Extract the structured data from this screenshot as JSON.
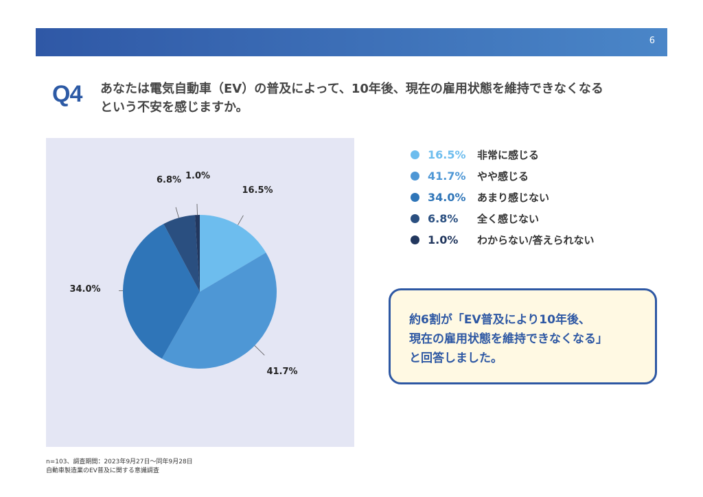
{
  "header": {
    "page_number": "6"
  },
  "question": {
    "label": "Q4",
    "text_line1": "あなたは電気自動車（EV）の普及によって、10年後、現在の雇用状態を維持できなくなる",
    "text_line2": "という不安を感じますか。"
  },
  "chart_data": {
    "type": "pie",
    "title": "",
    "start_angle": "12 o'clock",
    "direction": "clockwise",
    "slices": [
      {
        "label": "非常に感じる",
        "value": 16.5,
        "display": "16.5%",
        "color": "#6dbdee"
      },
      {
        "label": "やや感じる",
        "value": 41.7,
        "display": "41.7%",
        "color": "#4e97d5"
      },
      {
        "label": "あまり感じない",
        "value": 34.0,
        "display": "34.0%",
        "color": "#2f75b8"
      },
      {
        "label": "全く感じない",
        "value": 6.8,
        "display": "6.8%",
        "color": "#2a4f80"
      },
      {
        "label": "わからない/答えられない",
        "value": 1.0,
        "display": "1.0%",
        "color": "#22375e"
      }
    ]
  },
  "legend": {
    "items": [
      {
        "pct": "16.5%",
        "label": "非常に感じる",
        "color": "#6dbdee"
      },
      {
        "pct": "41.7%",
        "label": "やや感じる",
        "color": "#4e97d5"
      },
      {
        "pct": "34.0%",
        "label": "あまり感じない",
        "color": "#2f75b8"
      },
      {
        "pct": "6.8%",
        "label": "全く感じない",
        "color": "#2a4f80"
      },
      {
        "pct": "1.0%",
        "label": "わからない/答えられない",
        "color": "#22375e"
      }
    ]
  },
  "callout": {
    "line1": "約6割が「EV普及により10年後、",
    "line2": "現在の雇用状態を維持できなくなる」",
    "line3": "と回答しました。"
  },
  "footnote": {
    "line1": "n=103、調査期間：2023年9月27日〜同年9月28日",
    "line2": "自動車製造業のEV普及に関する意識調査"
  },
  "colors": {
    "brand": "#2d5aa5",
    "panel": "#e4e6f4",
    "callout_bg": "#fff9e3"
  }
}
